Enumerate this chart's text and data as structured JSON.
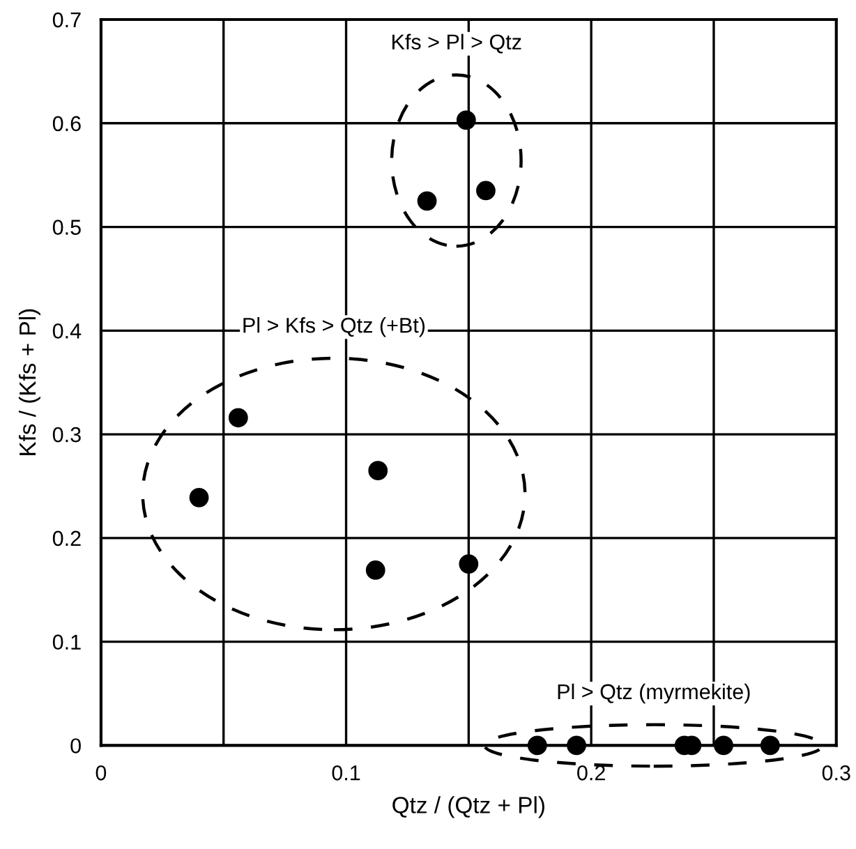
{
  "chart_data": {
    "type": "scatter",
    "xlabel": "Qtz / (Qtz + Pl)",
    "ylabel": "Kfs / (Kfs + Pl)",
    "xlim": [
      0,
      0.3
    ],
    "ylim": [
      0,
      0.7
    ],
    "xticks": [
      0,
      {
        "value": 0.05,
        "label": null
      },
      0.1,
      {
        "value": 0.15,
        "label": null
      },
      0.2,
      {
        "value": 0.25,
        "label": null
      },
      0.3
    ],
    "yticks": [
      0,
      0.1,
      0.2,
      0.3,
      0.4,
      0.5,
      0.6,
      0.7
    ],
    "grid": true,
    "marker": "circle",
    "series": [
      {
        "color": "#000000",
        "x": [
          0.149,
          0.133,
          0.157
        ],
        "values": [
          0.603,
          0.525,
          0.535
        ]
      },
      {
        "color": "#000000",
        "x": [
          0.056,
          0.04,
          0.113,
          0.112,
          0.15
        ],
        "values": [
          0.316,
          0.239,
          0.265,
          0.169,
          0.175
        ]
      },
      {
        "color": "#000000",
        "x": [
          0.178,
          0.194,
          0.238,
          0.241,
          0.254,
          0.273
        ],
        "values": [
          0,
          0,
          0,
          0,
          0,
          0
        ]
      }
    ],
    "annotations": [
      "Kfs > Pl > Qtz",
      "Pl > Kfs > Qtz (+Bt)",
      "Pl > Qtz (myrmekite)"
    ]
  }
}
